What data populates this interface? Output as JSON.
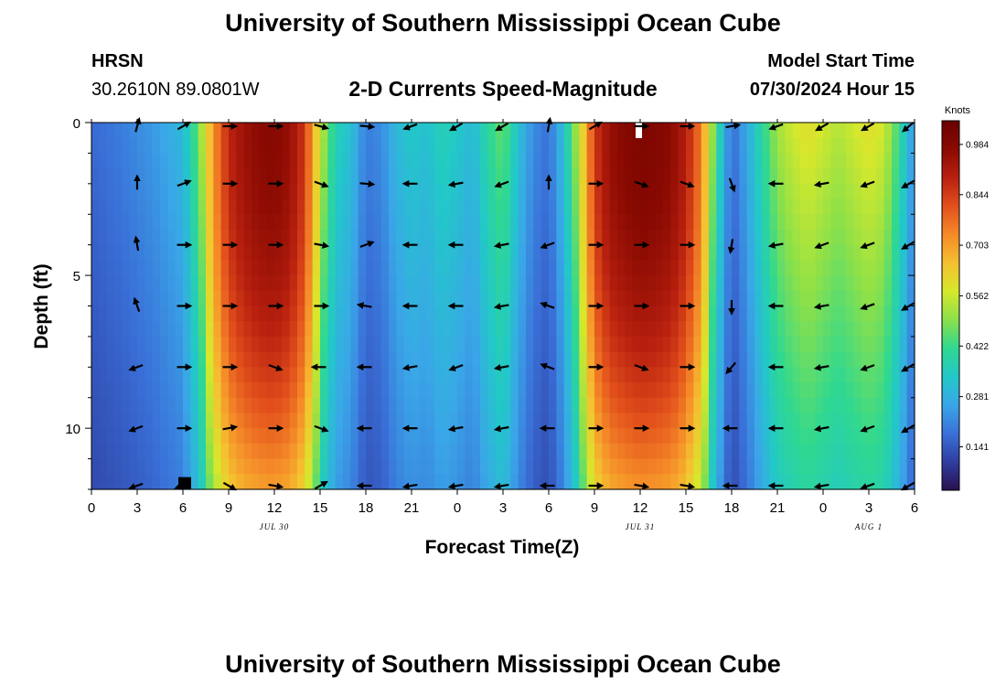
{
  "page": {
    "title": "University of Southern Mississippi Ocean Cube",
    "footer_title": "University of Southern Mississippi Ocean Cube"
  },
  "header": {
    "station": "HRSN",
    "location": "30.2610N  89.0801W",
    "model_start_label": "Model Start Time",
    "model_start_value": "07/30/2024 Hour 15"
  },
  "colors": {
    "palette": [
      "#2a1050",
      "#2f3ea0",
      "#3a70d8",
      "#3aa6e8",
      "#22c8c8",
      "#30d890",
      "#8be04a",
      "#d6e82c",
      "#f5c030",
      "#f58a28",
      "#e2501c",
      "#b8200f",
      "#8a0a02",
      "#6a0000"
    ],
    "arrow": "#000000",
    "marker_white": "#ffffff",
    "marker_black": "#000000"
  },
  "chart_data": {
    "type": "heatmap",
    "title": "2-D Currents Speed-Magnitude",
    "xlabel": "Forecast Time(Z)",
    "ylabel": "Depth (ft)",
    "x_tick_labels": [
      "0",
      "3",
      "6",
      "9",
      "12",
      "15",
      "18",
      "21",
      "0",
      "3",
      "6",
      "9",
      "12",
      "15",
      "18",
      "21",
      "0",
      "3",
      "6"
    ],
    "x_hours": [
      0,
      54
    ],
    "y_ticks": [
      "0",
      "5",
      "10"
    ],
    "ylim": [
      0,
      12
    ],
    "date_labels": [
      {
        "hour": 12,
        "text": "JUL 30"
      },
      {
        "hour": 36,
        "text": "JUL 31"
      },
      {
        "hour": 51,
        "text": "AUG 1"
      }
    ],
    "colorbar": {
      "title": "Knots",
      "ticks": [
        "0.984",
        "0.844",
        "0.703",
        "0.562",
        "0.422",
        "0.281",
        "0.141"
      ],
      "tick_values": [
        0.984,
        0.844,
        0.703,
        0.562,
        0.422,
        0.281,
        0.141
      ],
      "range": [
        0.02,
        1.05
      ]
    },
    "depths_ft": [
      0,
      2,
      4,
      6,
      8,
      10,
      12
    ],
    "speed_profile_by_hour": [
      [
        0,
        0.15
      ],
      [
        2,
        0.18
      ],
      [
        4,
        0.22
      ],
      [
        6,
        0.28
      ],
      [
        7,
        0.45
      ],
      [
        8,
        0.72
      ],
      [
        9,
        0.88
      ],
      [
        10,
        0.94
      ],
      [
        11,
        0.97
      ],
      [
        12,
        0.98
      ],
      [
        13,
        0.95
      ],
      [
        14,
        0.85
      ],
      [
        15,
        0.55
      ],
      [
        16,
        0.35
      ],
      [
        17,
        0.3
      ],
      [
        18,
        0.18
      ],
      [
        19,
        0.2
      ],
      [
        20,
        0.28
      ],
      [
        21,
        0.32
      ],
      [
        22,
        0.3
      ],
      [
        23,
        0.35
      ],
      [
        24,
        0.32
      ],
      [
        25,
        0.28
      ],
      [
        26,
        0.38
      ],
      [
        27,
        0.45
      ],
      [
        28,
        0.3
      ],
      [
        29,
        0.2
      ],
      [
        30,
        0.16
      ],
      [
        31,
        0.3
      ],
      [
        32,
        0.55
      ],
      [
        33,
        0.85
      ],
      [
        34,
        0.95
      ],
      [
        35,
        0.98
      ],
      [
        36,
        1.0
      ],
      [
        37,
        0.99
      ],
      [
        38,
        0.97
      ],
      [
        39,
        0.9
      ],
      [
        40,
        0.75
      ],
      [
        41,
        0.4
      ],
      [
        42,
        0.15
      ],
      [
        43,
        0.25
      ],
      [
        44,
        0.38
      ],
      [
        45,
        0.5
      ],
      [
        46,
        0.55
      ],
      [
        47,
        0.58
      ],
      [
        48,
        0.55
      ],
      [
        49,
        0.52
      ],
      [
        50,
        0.55
      ],
      [
        51,
        0.58
      ],
      [
        52,
        0.55
      ],
      [
        53,
        0.4
      ],
      [
        54,
        0.2
      ]
    ],
    "arrows": {
      "hours": [
        3,
        6,
        9,
        12,
        15,
        18,
        21,
        24,
        27,
        30,
        33,
        36,
        39,
        42,
        45,
        48,
        51,
        54
      ],
      "depths_ft": [
        0,
        2,
        4,
        6,
        8,
        10,
        12
      ],
      "angles_deg": [
        [
          75,
          30,
          0,
          0,
          -15,
          -5,
          200,
          210,
          210,
          80,
          30,
          0,
          0,
          10,
          200,
          210,
          210,
          220
        ],
        [
          90,
          20,
          0,
          0,
          -20,
          -5,
          180,
          190,
          200,
          90,
          0,
          -20,
          -20,
          -70,
          180,
          190,
          200,
          210
        ],
        [
          100,
          0,
          0,
          0,
          -10,
          20,
          180,
          180,
          190,
          200,
          0,
          0,
          0,
          -100,
          190,
          200,
          200,
          210
        ],
        [
          110,
          0,
          0,
          0,
          0,
          170,
          180,
          180,
          190,
          160,
          0,
          0,
          0,
          -90,
          180,
          190,
          200,
          210
        ],
        [
          200,
          0,
          0,
          -20,
          180,
          180,
          190,
          200,
          190,
          160,
          0,
          -20,
          0,
          230,
          180,
          190,
          200,
          210
        ],
        [
          200,
          0,
          10,
          0,
          -20,
          180,
          180,
          190,
          190,
          180,
          0,
          0,
          0,
          180,
          180,
          190,
          200,
          210
        ],
        [
          200,
          200,
          -30,
          -10,
          30,
          180,
          190,
          190,
          190,
          180,
          0,
          -10,
          -10,
          180,
          180,
          190,
          200,
          210
        ]
      ]
    }
  }
}
